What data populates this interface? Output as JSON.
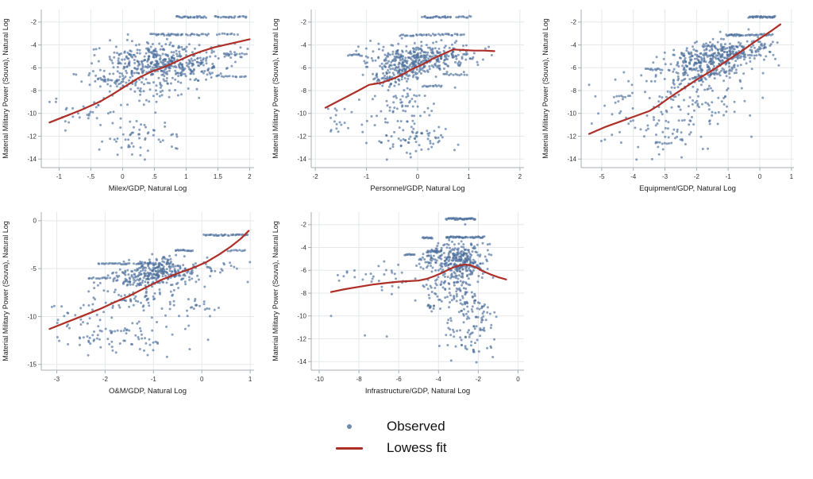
{
  "figure": {
    "background": "#ffffff",
    "colors": {
      "dot": "#4a6d9b",
      "dot_opacity": 0.65,
      "lowess": "#ae2f27",
      "grid": "#e6e8eb",
      "axis": "#a9aeb4",
      "text": "#1c1c1c"
    },
    "legend": {
      "items": [
        {
          "marker": "dot",
          "label": "Observed"
        },
        {
          "marker": "line",
          "label": "Lowess fit"
        }
      ]
    }
  },
  "chart_data": [
    {
      "type": "scatter",
      "title": "",
      "xlabel": "Milex/GDP, Natural Log",
      "ylabel": "Material Military Power (Souva), Natural Log",
      "xlim": [
        -1.28,
        2.07
      ],
      "ylim": [
        -14.75,
        -0.9
      ],
      "xticks": [
        -1,
        -0.5,
        0,
        0.5,
        1,
        1.5,
        2
      ],
      "xtick_labels": [
        "-1",
        "-.5",
        "0",
        ".5",
        "1",
        "1.5",
        "2"
      ],
      "yticks": [
        -2,
        -4,
        -6,
        -8,
        -10,
        -12,
        -14
      ],
      "ytick_labels": [
        "-2",
        "-4",
        "-6",
        "-8",
        "-10",
        "-12",
        "-14"
      ],
      "lowess": [
        [
          -1.15,
          -10.8
        ],
        [
          -0.9,
          -10.25
        ],
        [
          -0.65,
          -9.7
        ],
        [
          -0.45,
          -9.2
        ],
        [
          -0.35,
          -8.95
        ],
        [
          -0.15,
          -8.3
        ],
        [
          0.05,
          -7.6
        ],
        [
          0.25,
          -6.9
        ],
        [
          0.45,
          -6.35
        ],
        [
          0.65,
          -5.95
        ],
        [
          0.85,
          -5.45
        ],
        [
          1.05,
          -4.95
        ],
        [
          1.25,
          -4.55
        ],
        [
          1.45,
          -4.2
        ],
        [
          1.65,
          -3.95
        ],
        [
          1.85,
          -3.7
        ],
        [
          2.0,
          -3.5
        ]
      ],
      "scatter_stripes": [
        {
          "n": 26,
          "y": -1.55,
          "x0": 0.85,
          "x1": 1.3
        },
        {
          "n": 22,
          "y": -1.55,
          "x0": 1.45,
          "x1": 1.95
        },
        {
          "n": 24,
          "y": -3.1,
          "x0": 0.45,
          "x1": 0.95
        },
        {
          "n": 14,
          "y": -3.1,
          "x0": 1.0,
          "x1": 1.35
        },
        {
          "n": 10,
          "y": -3.05,
          "x0": 1.5,
          "x1": 1.8
        },
        {
          "n": 12,
          "y": -6.75,
          "x0": 1.55,
          "x1": 1.95
        },
        {
          "n": 10,
          "y": -4.8,
          "x0": 1.6,
          "x1": 1.95
        }
      ],
      "scatter_clusters": [
        {
          "n": 260,
          "cx": 0.45,
          "cy": -5.3,
          "sx": 0.35,
          "sy": 0.75
        },
        {
          "n": 120,
          "cx": 0.75,
          "cy": -6.1,
          "sx": 0.35,
          "sy": 0.6
        },
        {
          "n": 70,
          "cx": -0.05,
          "cy": -7.1,
          "sx": 0.28,
          "sy": 0.55
        },
        {
          "n": 40,
          "cx": 0.35,
          "cy": -8.1,
          "sx": 0.35,
          "sy": 0.5
        },
        {
          "n": 25,
          "cx": -0.6,
          "cy": -9.7,
          "sx": 0.3,
          "sy": 0.55
        },
        {
          "n": 60,
          "cx": 0.3,
          "cy": -11.9,
          "sx": 0.35,
          "sy": 1.0
        },
        {
          "n": 50,
          "cx": 1.25,
          "cy": -5.4,
          "sx": 0.22,
          "sy": 0.7
        },
        {
          "n": 20,
          "cx": 1.7,
          "cy": -4.6,
          "sx": 0.2,
          "sy": 0.4
        }
      ],
      "scatter_extra": [
        [
          -1.15,
          -9.0
        ],
        [
          -1.05,
          -9.0
        ],
        [
          -0.95,
          -10.35
        ],
        [
          -0.9,
          -11.5
        ],
        [
          0.35,
          -14.05
        ],
        [
          0.15,
          -13.6
        ]
      ]
    },
    {
      "type": "scatter",
      "title": "",
      "xlabel": "Personnel/GDP, Natural Log",
      "ylabel": "Material Military Power (Souva), Natural Log",
      "xlim": [
        -2.08,
        2.08
      ],
      "ylim": [
        -14.75,
        -0.9
      ],
      "xticks": [
        -2,
        -1,
        0,
        1,
        2
      ],
      "xtick_labels": [
        "-2",
        "-1",
        "0",
        "1",
        "2"
      ],
      "yticks": [
        -2,
        -4,
        -6,
        -8,
        -10,
        -12,
        -14
      ],
      "ytick_labels": [
        "-2",
        "-4",
        "-6",
        "-8",
        "-10",
        "-12",
        "-14"
      ],
      "lowess": [
        [
          -1.8,
          -9.5
        ],
        [
          -1.5,
          -8.8
        ],
        [
          -1.2,
          -8.1
        ],
        [
          -0.95,
          -7.5
        ],
        [
          -0.7,
          -7.3
        ],
        [
          -0.5,
          -7.0
        ],
        [
          -0.3,
          -6.6
        ],
        [
          -0.1,
          -6.1
        ],
        [
          0.1,
          -5.7
        ],
        [
          0.3,
          -5.2
        ],
        [
          0.5,
          -4.8
        ],
        [
          0.7,
          -4.4
        ],
        [
          0.9,
          -4.45
        ],
        [
          1.1,
          -4.5
        ],
        [
          1.3,
          -4.5
        ],
        [
          1.5,
          -4.55
        ]
      ],
      "scatter_stripes": [
        {
          "n": 26,
          "y": -1.55,
          "x0": 0.1,
          "x1": 0.65
        },
        {
          "n": 10,
          "y": -1.55,
          "x0": 0.75,
          "x1": 1.05
        },
        {
          "n": 20,
          "y": -3.15,
          "x0": -0.35,
          "x1": 0.25
        },
        {
          "n": 18,
          "y": -3.1,
          "x0": 0.3,
          "x1": 0.9
        },
        {
          "n": 10,
          "y": -4.9,
          "x0": -1.35,
          "x1": -1.1
        },
        {
          "n": 12,
          "y": -6.6,
          "x0": 0.5,
          "x1": 0.95
        },
        {
          "n": 12,
          "y": -7.6,
          "x0": 0.1,
          "x1": 0.45
        }
      ],
      "scatter_clusters": [
        {
          "n": 280,
          "cx": -0.25,
          "cy": -5.5,
          "sx": 0.38,
          "sy": 0.8
        },
        {
          "n": 120,
          "cx": 0.35,
          "cy": -5.0,
          "sx": 0.3,
          "sy": 0.6
        },
        {
          "n": 50,
          "cx": -0.55,
          "cy": -7.0,
          "sx": 0.25,
          "sy": 0.4
        },
        {
          "n": 50,
          "cx": -0.4,
          "cy": -9.0,
          "sx": 0.35,
          "sy": 0.7
        },
        {
          "n": 60,
          "cx": -0.3,
          "cy": -11.7,
          "sx": 0.4,
          "sy": 0.9
        },
        {
          "n": 12,
          "cx": -1.6,
          "cy": -10.5,
          "sx": 0.15,
          "sy": 0.8
        },
        {
          "n": 20,
          "cx": 1.0,
          "cy": -4.9,
          "sx": 0.2,
          "sy": 0.35
        },
        {
          "n": 25,
          "cx": 0.2,
          "cy": -12.2,
          "sx": 0.3,
          "sy": 0.6
        }
      ],
      "scatter_extra": [
        [
          -1.75,
          -9.6
        ],
        [
          -1.7,
          -10.4
        ],
        [
          -1.55,
          -11.6
        ],
        [
          -0.6,
          -14.05
        ],
        [
          1.45,
          -4.9
        ]
      ]
    },
    {
      "type": "scatter",
      "title": "",
      "xlabel": "Equipment/GDP, Natural Log",
      "ylabel": "Material Military Power (Souva), Natural Log",
      "xlim": [
        -5.65,
        1.08
      ],
      "ylim": [
        -14.75,
        -0.9
      ],
      "xticks": [
        -5,
        -4,
        -3,
        -2,
        -1,
        0,
        1
      ],
      "xtick_labels": [
        "-5",
        "-4",
        "-3",
        "-2",
        "-1",
        "0",
        "1"
      ],
      "yticks": [
        -2,
        -4,
        -6,
        -8,
        -10,
        -12,
        -14
      ],
      "ytick_labels": [
        "-2",
        "-4",
        "-6",
        "-8",
        "-10",
        "-12",
        "-14"
      ],
      "lowess": [
        [
          -5.4,
          -11.8
        ],
        [
          -4.9,
          -11.2
        ],
        [
          -4.4,
          -10.7
        ],
        [
          -3.9,
          -10.2
        ],
        [
          -3.5,
          -9.8
        ],
        [
          -3.2,
          -9.3
        ],
        [
          -2.9,
          -8.7
        ],
        [
          -2.6,
          -8.15
        ],
        [
          -2.3,
          -7.6
        ],
        [
          -2.0,
          -7.05
        ],
        [
          -1.7,
          -6.55
        ],
        [
          -1.4,
          -6.05
        ],
        [
          -1.1,
          -5.5
        ],
        [
          -0.8,
          -4.95
        ],
        [
          -0.5,
          -4.4
        ],
        [
          -0.2,
          -3.8
        ],
        [
          0.1,
          -3.25
        ],
        [
          0.4,
          -2.7
        ],
        [
          0.65,
          -2.2
        ]
      ],
      "scatter_stripes": [
        {
          "n": 34,
          "y": -1.55,
          "x0": -0.35,
          "x1": 0.5
        },
        {
          "n": 20,
          "y": -3.15,
          "x0": -1.05,
          "x1": -0.55
        },
        {
          "n": 20,
          "y": -3.1,
          "x0": -0.45,
          "x1": 0.4
        },
        {
          "n": 12,
          "y": -6.15,
          "x0": -3.6,
          "x1": -3.1
        },
        {
          "n": 8,
          "y": -8.5,
          "x0": -4.6,
          "x1": -4.1
        },
        {
          "n": 8,
          "y": -12.6,
          "x0": -3.3,
          "x1": -2.8
        }
      ],
      "scatter_clusters": [
        {
          "n": 280,
          "cx": -1.5,
          "cy": -5.3,
          "sx": 0.6,
          "sy": 0.8
        },
        {
          "n": 90,
          "cx": -2.3,
          "cy": -6.8,
          "sx": 0.5,
          "sy": 0.7
        },
        {
          "n": 80,
          "cx": -0.7,
          "cy": -4.7,
          "sx": 0.35,
          "sy": 0.6
        },
        {
          "n": 70,
          "cx": -2.0,
          "cy": -8.8,
          "sx": 0.7,
          "sy": 0.8
        },
        {
          "n": 60,
          "cx": -2.6,
          "cy": -11.5,
          "sx": 0.7,
          "sy": 1.0
        },
        {
          "n": 20,
          "cx": -4.4,
          "cy": -9.5,
          "sx": 0.5,
          "sy": 1.3
        },
        {
          "n": 30,
          "cx": 0.2,
          "cy": -4.3,
          "sx": 0.25,
          "sy": 0.5
        }
      ],
      "scatter_extra": [
        [
          -5.4,
          -7.5
        ],
        [
          -5.2,
          -8.5
        ],
        [
          -4.9,
          -12.3
        ],
        [
          -3.9,
          -14.05
        ],
        [
          0.6,
          -5.8
        ],
        [
          -4.3,
          -6.4
        ]
      ]
    },
    {
      "type": "scatter",
      "title": "",
      "xlabel": "O&M/GDP, Natural Log",
      "ylabel": "Material Military Power (Souva), Natural Log",
      "xlim": [
        -3.32,
        1.08
      ],
      "ylim": [
        -15.6,
        0.9
      ],
      "xticks": [
        -3,
        -2,
        -1,
        0,
        1
      ],
      "xtick_labels": [
        "-3",
        "-2",
        "-1",
        "0",
        "1"
      ],
      "yticks": [
        0,
        -5,
        -10,
        -15
      ],
      "ytick_labels": [
        "0",
        "-5",
        "-10",
        "-15"
      ],
      "lowess": [
        [
          -3.15,
          -11.3
        ],
        [
          -2.8,
          -10.6
        ],
        [
          -2.45,
          -9.9
        ],
        [
          -2.1,
          -9.2
        ],
        [
          -1.8,
          -8.5
        ],
        [
          -1.5,
          -7.85
        ],
        [
          -1.25,
          -7.2
        ],
        [
          -1.05,
          -6.7
        ],
        [
          -0.85,
          -6.2
        ],
        [
          -0.65,
          -5.8
        ],
        [
          -0.45,
          -5.4
        ],
        [
          -0.25,
          -5.05
        ],
        [
          -0.1,
          -4.75
        ],
        [
          0.1,
          -4.3
        ],
        [
          0.35,
          -3.55
        ],
        [
          0.6,
          -2.7
        ],
        [
          0.8,
          -1.9
        ],
        [
          0.97,
          -1.05
        ]
      ],
      "scatter_stripes": [
        {
          "n": 20,
          "y": -1.5,
          "x0": 0.05,
          "x1": 0.55
        },
        {
          "n": 14,
          "y": -1.5,
          "x0": 0.6,
          "x1": 0.95
        },
        {
          "n": 16,
          "y": -3.1,
          "x0": -0.55,
          "x1": -0.2
        },
        {
          "n": 10,
          "y": -3.1,
          "x0": 0.55,
          "x1": 0.9
        },
        {
          "n": 20,
          "y": -4.5,
          "x0": -2.15,
          "x1": -1.5
        },
        {
          "n": 14,
          "y": -4.5,
          "x0": -1.4,
          "x1": -0.9
        },
        {
          "n": 12,
          "y": -6.0,
          "x0": -2.35,
          "x1": -1.9
        },
        {
          "n": 8,
          "y": -11.5,
          "x0": -1.9,
          "x1": -1.5
        }
      ],
      "scatter_clusters": [
        {
          "n": 280,
          "cx": -0.85,
          "cy": -5.3,
          "sx": 0.45,
          "sy": 0.7
        },
        {
          "n": 60,
          "cx": -1.4,
          "cy": -6.3,
          "sx": 0.35,
          "sy": 0.5
        },
        {
          "n": 60,
          "cx": -1.3,
          "cy": -8.3,
          "sx": 0.5,
          "sy": 0.6
        },
        {
          "n": 55,
          "cx": -1.5,
          "cy": -12.3,
          "sx": 0.6,
          "sy": 0.8
        },
        {
          "n": 25,
          "cx": -2.6,
          "cy": -9.9,
          "sx": 0.3,
          "sy": 0.8
        },
        {
          "n": 25,
          "cx": -0.2,
          "cy": -9.2,
          "sx": 0.3,
          "sy": 0.6
        },
        {
          "n": 15,
          "cx": 0.4,
          "cy": -4.9,
          "sx": 0.3,
          "sy": 0.4
        },
        {
          "n": 15,
          "cx": -2.4,
          "cy": -12.6,
          "sx": 0.3,
          "sy": 0.5
        }
      ],
      "scatter_extra": [
        [
          -3.05,
          -8.9
        ],
        [
          -2.9,
          -8.95
        ],
        [
          -2.35,
          -14.05
        ],
        [
          0.95,
          -6.4
        ],
        [
          -3.1,
          -9.0
        ]
      ]
    },
    {
      "type": "scatter",
      "title": "",
      "xlabel": "Infrastructure/GDP, Natural Log",
      "ylabel": "Material Military Power (Souva), Natural Log",
      "xlim": [
        -10.4,
        0.3
      ],
      "ylim": [
        -14.75,
        -0.9
      ],
      "xticks": [
        -10,
        -8,
        -6,
        -4,
        -2,
        0
      ],
      "xtick_labels": [
        "-10",
        "-8",
        "-6",
        "-4",
        "-2",
        "0"
      ],
      "yticks": [
        -2,
        -4,
        -6,
        -8,
        -10,
        -12,
        -14
      ],
      "ytick_labels": [
        "-2",
        "-4",
        "-6",
        "-8",
        "-10",
        "-12",
        "-14"
      ],
      "lowess": [
        [
          -9.4,
          -7.9
        ],
        [
          -8.7,
          -7.65
        ],
        [
          -8.0,
          -7.45
        ],
        [
          -7.3,
          -7.25
        ],
        [
          -6.6,
          -7.1
        ],
        [
          -6.0,
          -7.0
        ],
        [
          -5.5,
          -6.95
        ],
        [
          -5.0,
          -6.9
        ],
        [
          -4.6,
          -6.75
        ],
        [
          -4.2,
          -6.5
        ],
        [
          -3.8,
          -6.2
        ],
        [
          -3.4,
          -5.85
        ],
        [
          -3.0,
          -5.6
        ],
        [
          -2.7,
          -5.5
        ],
        [
          -2.4,
          -5.55
        ],
        [
          -2.1,
          -5.75
        ],
        [
          -1.8,
          -6.05
        ],
        [
          -1.4,
          -6.35
        ],
        [
          -1.0,
          -6.6
        ],
        [
          -0.6,
          -6.8
        ]
      ],
      "scatter_stripes": [
        {
          "n": 40,
          "y": -1.5,
          "x0": -3.6,
          "x1": -2.15
        },
        {
          "n": 12,
          "y": -3.15,
          "x0": -4.8,
          "x1": -4.3
        },
        {
          "n": 26,
          "y": -3.1,
          "x0": -3.6,
          "x1": -2.6
        },
        {
          "n": 16,
          "y": -3.1,
          "x0": -2.4,
          "x1": -1.7
        },
        {
          "n": 10,
          "y": -4.6,
          "x0": -5.7,
          "x1": -5.2
        },
        {
          "n": 14,
          "y": -4.35,
          "x0": -4.6,
          "x1": -3.9
        }
      ],
      "scatter_clusters": [
        {
          "n": 280,
          "cx": -2.9,
          "cy": -5.2,
          "sx": 0.6,
          "sy": 0.8
        },
        {
          "n": 50,
          "cx": -4.2,
          "cy": -5.0,
          "sx": 0.4,
          "sy": 0.5
        },
        {
          "n": 70,
          "cx": -3.3,
          "cy": -7.3,
          "sx": 0.6,
          "sy": 0.7
        },
        {
          "n": 50,
          "cx": -2.5,
          "cy": -9.3,
          "sx": 0.6,
          "sy": 0.8
        },
        {
          "n": 55,
          "cx": -2.7,
          "cy": -11.8,
          "sx": 0.6,
          "sy": 1.0
        },
        {
          "n": 35,
          "cx": -6.6,
          "cy": -6.6,
          "sx": 1.1,
          "sy": 0.6
        },
        {
          "n": 25,
          "cx": -1.6,
          "cy": -10.0,
          "sx": 0.3,
          "sy": 1.0
        },
        {
          "n": 20,
          "cx": -4.3,
          "cy": -8.8,
          "sx": 0.4,
          "sy": 0.5
        }
      ],
      "scatter_extra": [
        [
          -9.4,
          -10.0
        ],
        [
          -7.7,
          -11.7
        ],
        [
          -6.6,
          -11.8
        ],
        [
          -8.6,
          -6.2
        ],
        [
          -9.0,
          -6.9
        ],
        [
          -7.4,
          -6.3
        ]
      ]
    }
  ]
}
